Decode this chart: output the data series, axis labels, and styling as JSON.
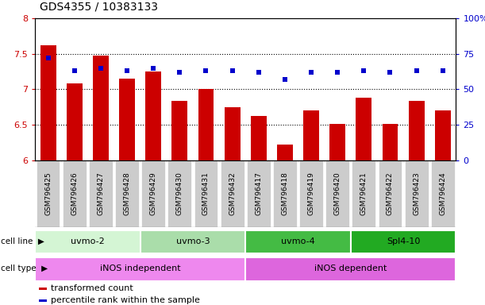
{
  "title": "GDS4355 / 10383133",
  "samples": [
    "GSM796425",
    "GSM796426",
    "GSM796427",
    "GSM796428",
    "GSM796429",
    "GSM796430",
    "GSM796431",
    "GSM796432",
    "GSM796417",
    "GSM796418",
    "GSM796419",
    "GSM796420",
    "GSM796421",
    "GSM796422",
    "GSM796423",
    "GSM796424"
  ],
  "bar_values": [
    7.62,
    7.08,
    7.47,
    7.15,
    7.25,
    6.83,
    7.0,
    6.75,
    6.62,
    6.22,
    6.7,
    6.51,
    6.88,
    6.51,
    6.83,
    6.7
  ],
  "dot_values": [
    72,
    63,
    65,
    63,
    65,
    62,
    63,
    63,
    62,
    57,
    62,
    62,
    63,
    62,
    63,
    63
  ],
  "ylim_left": [
    6.0,
    8.0
  ],
  "ylim_right": [
    0,
    100
  ],
  "bar_color": "#cc0000",
  "dot_color": "#0000cc",
  "cell_lines": [
    {
      "label": "uvmo-2",
      "start": 0,
      "end": 3,
      "color": "#d4f5d4"
    },
    {
      "label": "uvmo-3",
      "start": 4,
      "end": 7,
      "color": "#aaddaa"
    },
    {
      "label": "uvmo-4",
      "start": 8,
      "end": 11,
      "color": "#44bb44"
    },
    {
      "label": "Spl4-10",
      "start": 12,
      "end": 15,
      "color": "#22aa22"
    }
  ],
  "cell_types": [
    {
      "label": "iNOS independent",
      "start": 0,
      "end": 7,
      "color": "#ee88ee"
    },
    {
      "label": "iNOS dependent",
      "start": 8,
      "end": 15,
      "color": "#dd66dd"
    }
  ],
  "yticks_left": [
    6.0,
    6.5,
    7.0,
    7.5,
    8.0
  ],
  "yticks_right": [
    0,
    25,
    50,
    75,
    100
  ],
  "grid_values": [
    6.5,
    7.0,
    7.5
  ],
  "legend_items": [
    {
      "label": "transformed count",
      "color": "#cc0000"
    },
    {
      "label": "percentile rank within the sample",
      "color": "#0000cc"
    }
  ],
  "tick_bg_color": "#cccccc",
  "cell_line_label": "cell line",
  "cell_type_label": "cell type"
}
